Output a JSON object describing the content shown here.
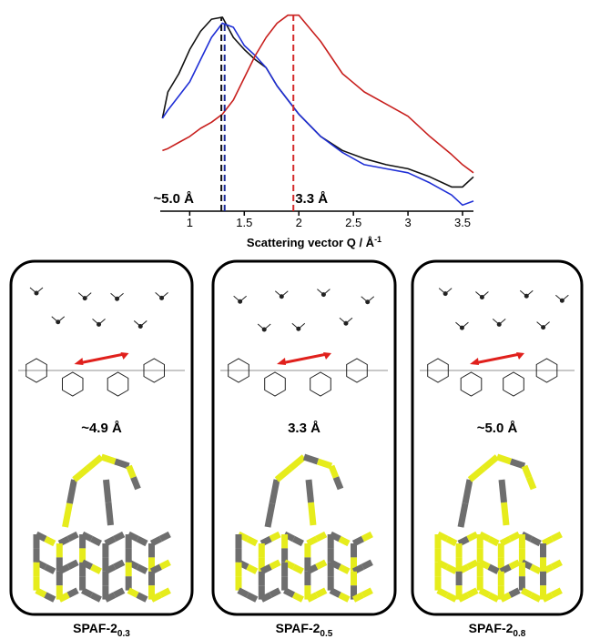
{
  "chart_data": {
    "type": "line",
    "x_label": "Scattering vector Q / Å",
    "x_label_sup": "-1",
    "x": [
      0.75,
      0.8,
      0.9,
      1.0,
      1.1,
      1.2,
      1.3,
      1.4,
      1.5,
      1.6,
      1.7,
      1.8,
      1.9,
      2.0,
      2.2,
      2.4,
      2.6,
      2.8,
      3.0,
      3.2,
      3.4,
      3.5,
      3.6
    ],
    "series": [
      {
        "color": "#111111",
        "values": [
          0.46,
          0.59,
          0.68,
          0.8,
          0.89,
          0.95,
          0.96,
          0.86,
          0.8,
          0.75,
          0.71,
          0.62,
          0.55,
          0.48,
          0.37,
          0.3,
          0.26,
          0.23,
          0.21,
          0.17,
          0.12,
          0.12,
          0.17
        ]
      },
      {
        "color": "#1f2fd6",
        "values": [
          0.46,
          0.5,
          0.57,
          0.64,
          0.75,
          0.86,
          0.93,
          0.91,
          0.82,
          0.77,
          0.71,
          0.62,
          0.55,
          0.48,
          0.37,
          0.29,
          0.23,
          0.21,
          0.19,
          0.14,
          0.08,
          0.03,
          0.05
        ]
      },
      {
        "color": "#c8201e",
        "values": [
          0.3,
          0.31,
          0.34,
          0.37,
          0.41,
          0.44,
          0.48,
          0.55,
          0.66,
          0.77,
          0.86,
          0.93,
          0.97,
          0.97,
          0.84,
          0.68,
          0.59,
          0.53,
          0.47,
          0.37,
          0.28,
          0.23,
          0.19
        ]
      }
    ],
    "vlines": [
      {
        "x": 1.29,
        "top": 0.96,
        "color": "#111111"
      },
      {
        "x": 1.32,
        "top": 0.93,
        "color": "#1a2a9a"
      },
      {
        "x": 1.95,
        "top": 0.97,
        "color": "#d42a2a"
      }
    ],
    "annotations": [
      {
        "text": "~5.0 Å",
        "x": 0.75
      },
      {
        "text": "3.3 Å",
        "x": 2.05
      }
    ],
    "xlim": [
      0.73,
      3.6
    ],
    "ylim": [
      0,
      1
    ],
    "xticks": [
      1,
      {
        "value": 1.5,
        "label": "1.5"
      },
      2,
      {
        "value": 2.5,
        "label": "2.5"
      },
      3,
      {
        "value": 3.5,
        "label": "3.5"
      }
    ]
  },
  "panels": [
    {
      "distance": "~4.9 Å",
      "name": "SPAF-2",
      "subscript": "0.3"
    },
    {
      "distance": "3.3 Å",
      "name": "SPAF-2",
      "subscript": "0.5"
    },
    {
      "distance": "~5.0 Å",
      "name": "SPAF-2",
      "subscript": "0.8"
    }
  ]
}
